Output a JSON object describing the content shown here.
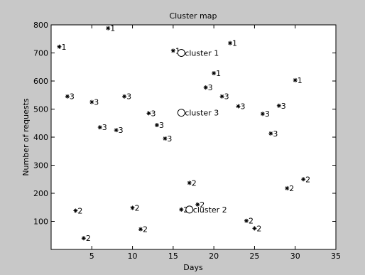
{
  "colors": {
    "figure_bg": "#c8c8c8",
    "axes_bg": "#ffffff",
    "ink": "#000000"
  },
  "chart_data": {
    "type": "scatter",
    "title": "Cluster map",
    "xlabel": "Days",
    "ylabel": "Number of requests",
    "xlim": [
      0,
      35
    ],
    "ylim": [
      0,
      800
    ],
    "xticks": [
      5,
      10,
      15,
      20,
      25,
      30,
      35
    ],
    "yticks": [
      100,
      200,
      300,
      400,
      500,
      600,
      700,
      800
    ],
    "grid": false,
    "legend": "none",
    "series": [
      {
        "label": "1",
        "points": [
          [
            1,
            722
          ],
          [
            7,
            788
          ],
          [
            15,
            708
          ],
          [
            20,
            628
          ],
          [
            22,
            735
          ],
          [
            30,
            603
          ]
        ]
      },
      {
        "label": "2",
        "points": [
          [
            3,
            138
          ],
          [
            4,
            40
          ],
          [
            10,
            148
          ],
          [
            11,
            72
          ],
          [
            16,
            142
          ],
          [
            17,
            237
          ],
          [
            18,
            160
          ],
          [
            24,
            102
          ],
          [
            25,
            75
          ],
          [
            29,
            218
          ],
          [
            31,
            250
          ]
        ]
      },
      {
        "label": "3",
        "points": [
          [
            2,
            545
          ],
          [
            5,
            525
          ],
          [
            6,
            435
          ],
          [
            8,
            425
          ],
          [
            9,
            545
          ],
          [
            12,
            485
          ],
          [
            13,
            443
          ],
          [
            14,
            395
          ],
          [
            19,
            577
          ],
          [
            21,
            545
          ],
          [
            23,
            510
          ],
          [
            26,
            483
          ],
          [
            27,
            413
          ],
          [
            28,
            512
          ]
        ]
      }
    ],
    "centroids": [
      {
        "label": "cluster 1",
        "x": 16,
        "y": 700
      },
      {
        "label": "cluster 3",
        "x": 16,
        "y": 487
      },
      {
        "label": "cluster 2",
        "x": 17,
        "y": 142
      }
    ]
  }
}
